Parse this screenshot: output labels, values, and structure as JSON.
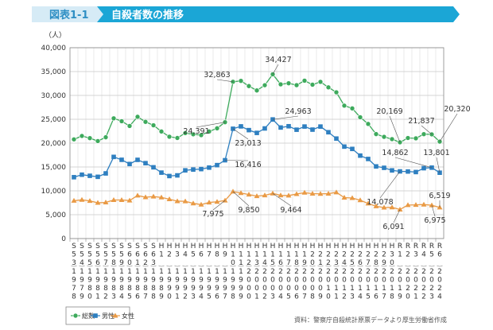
{
  "header": {
    "figure_no": "図表1-1",
    "title": "自殺者数の推移"
  },
  "source": "資料：警察庁自殺統計原票データより厚生労働省作成",
  "colors": {
    "header_light": "#d6ebf6",
    "header_dark": "#1ba6d6",
    "total": "#3daa5c",
    "male": "#2e7fc0",
    "female": "#e99a45"
  },
  "chart_data": {
    "type": "line",
    "ylabel": "（人）",
    "ylim": [
      0,
      40000
    ],
    "yticks": [
      "0",
      "5,000",
      "10,000",
      "15,000",
      "20,000",
      "25,000",
      "30,000",
      "35,000",
      "40,000"
    ],
    "grid": true,
    "legend_position": "bottom-left",
    "categories": [
      {
        "era": "S53",
        "year": "1978"
      },
      {
        "era": "S54",
        "year": "1979"
      },
      {
        "era": "S55",
        "year": "1980"
      },
      {
        "era": "S56",
        "year": "1981"
      },
      {
        "era": "S57",
        "year": "1982"
      },
      {
        "era": "S58",
        "year": "1983"
      },
      {
        "era": "S59",
        "year": "1984"
      },
      {
        "era": "S60",
        "year": "1985"
      },
      {
        "era": "S61",
        "year": "1986"
      },
      {
        "era": "S62",
        "year": "1987"
      },
      {
        "era": "S63",
        "year": "1988"
      },
      {
        "era": "H1",
        "year": "1989"
      },
      {
        "era": "H2",
        "year": "1990"
      },
      {
        "era": "H3",
        "year": "1991"
      },
      {
        "era": "H4",
        "year": "1992"
      },
      {
        "era": "H5",
        "year": "1993"
      },
      {
        "era": "H6",
        "year": "1994"
      },
      {
        "era": "H7",
        "year": "1995"
      },
      {
        "era": "H8",
        "year": "1996"
      },
      {
        "era": "H9",
        "year": "1997"
      },
      {
        "era": "H10",
        "year": "1998"
      },
      {
        "era": "H11",
        "year": "1999"
      },
      {
        "era": "H12",
        "year": "2000"
      },
      {
        "era": "H13",
        "year": "2001"
      },
      {
        "era": "H14",
        "year": "2002"
      },
      {
        "era": "H15",
        "year": "2003"
      },
      {
        "era": "H16",
        "year": "2004"
      },
      {
        "era": "H17",
        "year": "2005"
      },
      {
        "era": "H18",
        "year": "2006"
      },
      {
        "era": "H19",
        "year": "2007"
      },
      {
        "era": "H20",
        "year": "2008"
      },
      {
        "era": "H21",
        "year": "2009"
      },
      {
        "era": "H22",
        "year": "2010"
      },
      {
        "era": "H23",
        "year": "2011"
      },
      {
        "era": "H24",
        "year": "2012"
      },
      {
        "era": "H25",
        "year": "2013"
      },
      {
        "era": "H26",
        "year": "2014"
      },
      {
        "era": "H27",
        "year": "2015"
      },
      {
        "era": "H28",
        "year": "2016"
      },
      {
        "era": "H29",
        "year": "2017"
      },
      {
        "era": "H30",
        "year": "2018"
      },
      {
        "era": "R1",
        "year": "2019"
      },
      {
        "era": "R2",
        "year": "2020"
      },
      {
        "era": "R3",
        "year": "2021"
      },
      {
        "era": "R4",
        "year": "2022"
      },
      {
        "era": "R5",
        "year": "2023"
      },
      {
        "era": "R6",
        "year": "2024"
      }
    ],
    "series": [
      {
        "key": "total",
        "name": "総数",
        "marker": "circle",
        "values": [
          20788,
          21503,
          21048,
          20434,
          21228,
          25202,
          24596,
          23599,
          25524,
          24460,
          23742,
          22436,
          21346,
          21084,
          22104,
          21851,
          21679,
          22445,
          23104,
          24391,
          32863,
          33048,
          31957,
          31042,
          32143,
          34427,
          32325,
          32552,
          32155,
          33093,
          32249,
          32845,
          31690,
          30651,
          27858,
          27283,
          25427,
          24025,
          21897,
          21321,
          20840,
          20169,
          21081,
          21007,
          21881,
          21837,
          20320
        ]
      },
      {
        "key": "male",
        "name": "男性",
        "marker": "square",
        "values": [
          12859,
          13386,
          13155,
          12942,
          13654,
          17116,
          16508,
          15624,
          16497,
          15802,
          14934,
          13818,
          13102,
          13242,
          14296,
          14468,
          14560,
          14874,
          15393,
          16416,
          23013,
          23512,
          22727,
          22144,
          23080,
          24963,
          23272,
          23540,
          22813,
          23478,
          22831,
          23472,
          22283,
          20955,
          19273,
          18787,
          17386,
          16681,
          15121,
          14826,
          14290,
          14078,
          14055,
          13939,
          14746,
          14862,
          13801
        ]
      },
      {
        "key": "female",
        "name": "女性",
        "marker": "triangle",
        "values": [
          7929,
          8117,
          7893,
          7492,
          7574,
          8086,
          8088,
          7975,
          9027,
          8658,
          8808,
          8618,
          8244,
          7842,
          7808,
          7383,
          7119,
          7571,
          7711,
          7975,
          9850,
          9536,
          9230,
          8898,
          9063,
          9464,
          9053,
          9012,
          9342,
          9615,
          9418,
          9373,
          9407,
          9696,
          8585,
          8496,
          8041,
          7344,
          6776,
          6495,
          6550,
          6091,
          7026,
          7068,
          7135,
          6975,
          6519
        ]
      }
    ],
    "annotations": [
      {
        "series": "total",
        "year": "1997",
        "text": "24,391"
      },
      {
        "series": "total",
        "year": "1998",
        "text": "32,863"
      },
      {
        "series": "total",
        "year": "2003",
        "text": "34,427"
      },
      {
        "series": "total",
        "year": "2019",
        "text": "20,169"
      },
      {
        "series": "total",
        "year": "2023",
        "text": "21,837"
      },
      {
        "series": "total",
        "year": "2024",
        "text": "20,320"
      },
      {
        "series": "male",
        "year": "1997",
        "text": "16,416"
      },
      {
        "series": "male",
        "year": "1998",
        "text": "23,013"
      },
      {
        "series": "male",
        "year": "2003",
        "text": "24,963"
      },
      {
        "series": "male",
        "year": "2019",
        "text": "14,078"
      },
      {
        "series": "male",
        "year": "2023",
        "text": "14,862"
      },
      {
        "series": "male",
        "year": "2024",
        "text": "13,801"
      },
      {
        "series": "female",
        "year": "1997",
        "text": "7,975"
      },
      {
        "series": "female",
        "year": "1998",
        "text": "9,850"
      },
      {
        "series": "female",
        "year": "2003",
        "text": "9,464"
      },
      {
        "series": "female",
        "year": "2019",
        "text": "6,091"
      },
      {
        "series": "female",
        "year": "2024",
        "text": "6,519"
      },
      {
        "series": "female",
        "year": "2023",
        "text": "6,975"
      }
    ]
  }
}
